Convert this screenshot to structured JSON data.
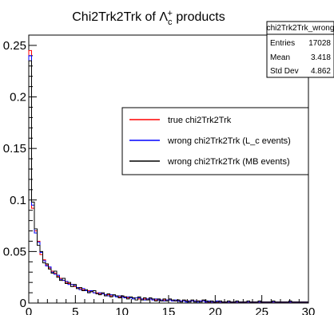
{
  "chart_data": {
    "type": "line",
    "title": {
      "prefix": "Chi2Trk2Trk of ",
      "symbol": "Λ",
      "subscript": "c",
      "superscript": "+",
      "suffix": " products"
    },
    "xlabel": "",
    "ylabel": "",
    "xlim": [
      0,
      30
    ],
    "ylim": [
      0,
      0.26
    ],
    "x_ticks": [
      0,
      5,
      10,
      15,
      20,
      25,
      30
    ],
    "y_ticks": [
      0,
      0.05,
      0.1,
      0.15,
      0.2,
      0.25
    ],
    "y_tick_labels": [
      "0",
      "0.05",
      "0.1",
      "0.15",
      "0.2",
      "0.25"
    ],
    "bin_width": 0.3,
    "stats_box": {
      "name": "chi2Trk2Trk_wrong",
      "rows": [
        {
          "label": "Entries",
          "value": "17028"
        },
        {
          "label": "Mean",
          "value": "3.418"
        },
        {
          "label": "Std Dev",
          "value": "4.862"
        }
      ]
    },
    "legend": {
      "placement": "center-right",
      "entries": [
        "true chi2Trk2Trk",
        "wrong chi2Trk2Trk (L_c events)",
        "wrong chi2Trk2Trk (MB events)"
      ]
    },
    "series": [
      {
        "name": "true chi2Trk2Trk",
        "color": "#ff0000",
        "values": [
          0.245,
          0.092,
          0.07,
          0.06,
          0.047,
          0.042,
          0.037,
          0.034,
          0.031,
          0.029,
          0.026,
          0.024,
          0.022,
          0.02,
          0.019,
          0.018,
          0.016,
          0.015,
          0.014,
          0.013,
          0.012,
          0.012,
          0.011,
          0.01,
          0.01,
          0.009,
          0.009,
          0.008,
          0.008,
          0.007,
          0.007,
          0.007,
          0.006,
          0.006,
          0.006,
          0.005,
          0.005,
          0.005,
          0.005,
          0.004,
          0.004,
          0.004,
          0.004,
          0.004,
          0.003,
          0.003,
          0.003,
          0.003,
          0.003,
          0.003,
          0.003,
          0.002,
          0.002,
          0.002,
          0.002,
          0.002,
          0.002,
          0.002,
          0.002,
          0.002,
          0.002,
          0.002,
          0.002,
          0.001,
          0.001,
          0.001,
          0.001,
          0.001,
          0.001,
          0.001,
          0.001,
          0.001,
          0.001,
          0.001,
          0.001,
          0.001,
          0.001,
          0.001,
          0.001,
          0.001,
          0.001,
          0.001,
          0.001,
          0.001,
          0.001,
          0.001,
          0.001,
          0.001,
          0.001,
          0.001,
          0.001,
          0.001,
          0.001,
          0.001,
          0.001,
          0.001,
          0.001,
          0.001,
          0.001,
          0.001
        ]
      },
      {
        "name": "wrong chi2Trk2Trk (L_c events)",
        "color": "#0000ff",
        "values": [
          0.24,
          0.095,
          0.068,
          0.059,
          0.049,
          0.041,
          0.036,
          0.035,
          0.03,
          0.028,
          0.027,
          0.023,
          0.022,
          0.021,
          0.018,
          0.018,
          0.017,
          0.015,
          0.013,
          0.014,
          0.012,
          0.011,
          0.012,
          0.01,
          0.009,
          0.01,
          0.009,
          0.008,
          0.007,
          0.008,
          0.007,
          0.006,
          0.007,
          0.006,
          0.005,
          0.006,
          0.005,
          0.004,
          0.005,
          0.005,
          0.004,
          0.003,
          0.004,
          0.004,
          0.003,
          0.004,
          0.003,
          0.003,
          0.002,
          0.003,
          0.003,
          0.002,
          0.003,
          0.002,
          0.002,
          0.002,
          0.001,
          0.002,
          0.002,
          0.002,
          0.001,
          0.002,
          0.002,
          0.001,
          0.002,
          0.001,
          0.001,
          0.002,
          0.001,
          0.001,
          0.001,
          0.001,
          0.001,
          0.001,
          0.001,
          0.001,
          0.001,
          0.001,
          0.001,
          0.001,
          0.001,
          0.001,
          0.001,
          0.001,
          0.001,
          0.001,
          0.001,
          0.001,
          0.001,
          0.001,
          0.001,
          0.001,
          0.001,
          0.001,
          0.001,
          0.001,
          0.001,
          0.001,
          0.001,
          0.001
        ]
      },
      {
        "name": "wrong chi2Trk2Trk (MB events)",
        "color": "#000000",
        "values": [
          0.235,
          0.098,
          0.072,
          0.056,
          0.05,
          0.039,
          0.038,
          0.033,
          0.029,
          0.031,
          0.025,
          0.022,
          0.024,
          0.019,
          0.02,
          0.016,
          0.018,
          0.014,
          0.015,
          0.012,
          0.013,
          0.01,
          0.011,
          0.012,
          0.009,
          0.008,
          0.01,
          0.007,
          0.009,
          0.006,
          0.008,
          0.007,
          0.005,
          0.007,
          0.006,
          0.004,
          0.006,
          0.005,
          0.003,
          0.006,
          0.003,
          0.005,
          0.003,
          0.005,
          0.004,
          0.002,
          0.004,
          0.002,
          0.004,
          0.002,
          0.004,
          0.003,
          0.002,
          0.003,
          0.001,
          0.003,
          0.002,
          0.001,
          0.003,
          0.001,
          0.002,
          0.001,
          0.003,
          0.002,
          0.001,
          0.002,
          0.001,
          0.001,
          0.002,
          0.001,
          0.001,
          0.002,
          0.001,
          0.001,
          0.002,
          0.001,
          0.001,
          0.001,
          0.002,
          0.001,
          0.001,
          0.001,
          0.002,
          0.001,
          0.001,
          0.001,
          0.001,
          0.002,
          0.001,
          0.001,
          0.001,
          0.001,
          0.001,
          0.002,
          0.001,
          0.001,
          0.001,
          0.001,
          0.001,
          0.001
        ]
      }
    ]
  }
}
